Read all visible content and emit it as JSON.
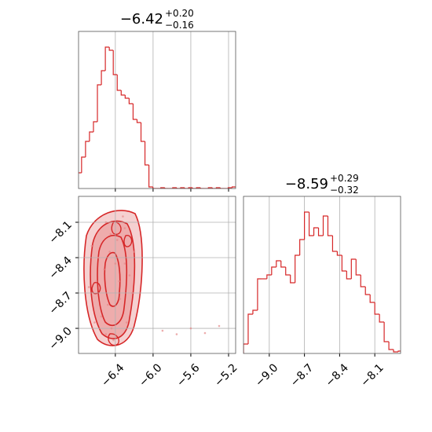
{
  "chart_data": [
    {
      "type": "histogram",
      "color": "#d62728",
      "title": "−6.42",
      "title_plus": "+0.20",
      "title_minus": "−0.16",
      "bins": [
        -6.8,
        -6.758,
        -6.716,
        -6.674,
        -6.632,
        -6.59,
        -6.548,
        -6.506,
        -6.464,
        -6.422,
        -6.38,
        -6.338,
        -6.296,
        -6.254,
        -6.212,
        -6.17,
        -6.128,
        -6.086,
        -6.044,
        -6.002,
        -5.96,
        -5.918,
        -5.876,
        -5.834,
        -5.792,
        -5.75,
        -5.708,
        -5.666,
        -5.624,
        -5.582,
        -5.54,
        -5.498,
        -5.456,
        -5.414,
        -5.372,
        -5.33,
        -5.288,
        -5.246,
        -5.204,
        -5.162,
        -5.12
      ],
      "values": [
        20,
        40,
        60,
        72,
        85,
        132,
        150,
        180,
        176,
        145,
        125,
        119,
        115,
        108,
        88,
        84,
        60,
        30,
        2,
        0,
        0,
        1,
        0,
        0,
        1,
        0,
        1,
        0,
        1,
        0,
        1,
        0,
        0,
        1,
        0,
        1,
        0,
        0,
        1,
        2
      ],
      "xlim": [
        -6.79,
        -5.125
      ],
      "ylim": [
        0,
        200
      ],
      "xticks": [
        -6.4,
        -6.0,
        -5.6,
        -5.2
      ],
      "grid": true
    },
    {
      "type": "contour",
      "color": "#d62728",
      "x": [
        -6.65,
        -6.6,
        -6.55,
        -6.5,
        -6.45,
        -6.4,
        -6.35,
        -6.3,
        -6.25,
        -6.2,
        -6.62,
        -6.52,
        -6.42,
        -6.32,
        -6.22,
        -6.58,
        -6.48,
        -6.38,
        -6.28,
        -6.68,
        -6.44,
        -6.36,
        -6.5,
        -6.3,
        -6.46,
        -5.9,
        -5.75,
        -5.6,
        -5.45,
        -5.3
      ],
      "y": [
        -8.3,
        -8.6,
        -8.9,
        -9.05,
        -8.2,
        -8.45,
        -8.75,
        -8.15,
        -8.55,
        -8.35,
        -8.95,
        -8.5,
        -9.1,
        -8.05,
        -8.7,
        -8.4,
        -8.8,
        -8.25,
        -8.95,
        -8.65,
        -9.0,
        -8.6,
        -8.1,
        -8.45,
        -8.35,
        -9.02,
        -9.05,
        -9.0,
        -9.04,
        -8.98
      ],
      "xlim": [
        -6.79,
        -5.125
      ],
      "ylim": [
        -9.213,
        -7.88
      ],
      "xticks": [
        {
          "value": -6.4,
          "label": "−6.4"
        },
        {
          "value": -6.0,
          "label": "−6.0"
        },
        {
          "value": -5.6,
          "label": "−5.6"
        },
        {
          "value": -5.2,
          "label": "−5.2"
        }
      ],
      "yticks": [
        {
          "value": -8.1,
          "label": "−8.1"
        },
        {
          "value": -8.4,
          "label": "−8.4"
        },
        {
          "value": -8.7,
          "label": "−8.7"
        },
        {
          "value": -9.0,
          "label": "−9.0"
        }
      ],
      "grid": true
    },
    {
      "type": "histogram",
      "color": "#d62728",
      "title": "−8.59",
      "title_plus": "+0.29",
      "title_minus": "−0.32",
      "bins": [
        -9.22,
        -9.18,
        -9.14,
        -9.1,
        -9.06,
        -9.02,
        -8.98,
        -8.94,
        -8.9,
        -8.86,
        -8.82,
        -8.78,
        -8.74,
        -8.7,
        -8.66,
        -8.62,
        -8.58,
        -8.54,
        -8.5,
        -8.46,
        -8.42,
        -8.38,
        -8.34,
        -8.3,
        -8.26,
        -8.22,
        -8.18,
        -8.14,
        -8.1,
        -8.06,
        -8.02,
        -7.98,
        -7.94,
        -7.9,
        -7.86
      ],
      "values": [
        12,
        50,
        55,
        95,
        95,
        100,
        110,
        118,
        110,
        100,
        90,
        125,
        145,
        180,
        150,
        160,
        150,
        175,
        150,
        130,
        125,
        105,
        95,
        120,
        100,
        85,
        75,
        65,
        50,
        40,
        15,
        5,
        2,
        3
      ],
      "xlim": [
        -9.22,
        -7.88
      ],
      "ylim": [
        0,
        200
      ],
      "xticks": [
        {
          "value": -9.0,
          "label": "−9.0"
        },
        {
          "value": -8.7,
          "label": "−8.7"
        },
        {
          "value": -8.4,
          "label": "−8.4"
        },
        {
          "value": -8.1,
          "label": "−8.1"
        }
      ],
      "grid": true
    }
  ]
}
